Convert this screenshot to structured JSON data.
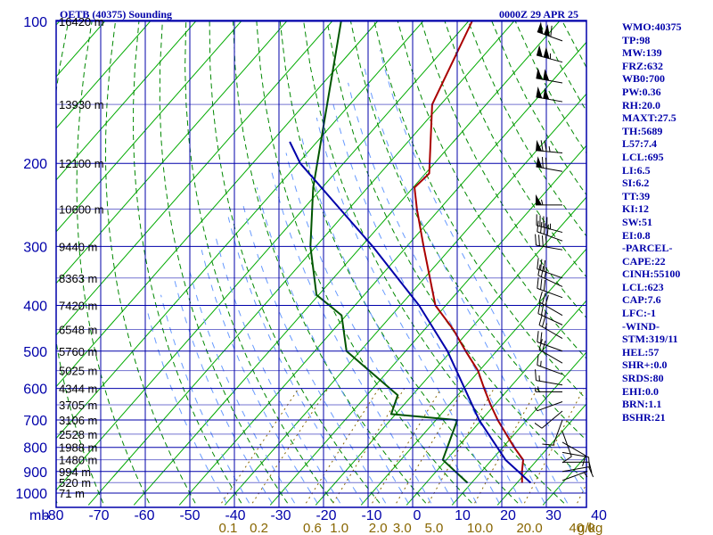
{
  "chart_data": {
    "type": "skew-t sounding",
    "title": "OETB (40375) Sounding",
    "valid_time": "0000Z 29 APR 25",
    "pressure_unit": "mb",
    "mixing_ratio_unit": "g/kg",
    "xlim": [
      -80,
      40
    ],
    "ylim": [
      1000,
      100
    ],
    "temperature_ticks": [
      "-80",
      "-70",
      "-60",
      "-50",
      "-40",
      "-30",
      "-20",
      "-10",
      "0",
      "10",
      "20",
      "30",
      "40"
    ],
    "temperature_tick_values": [
      -80,
      -70,
      -60,
      -50,
      -40,
      -30,
      -20,
      -10,
      0,
      10,
      20,
      30,
      40
    ],
    "pressure_ticks": [
      "100",
      "200",
      "300",
      "400",
      "500",
      "600",
      "700",
      "800",
      "900",
      "1000"
    ],
    "pressure_tick_values": [
      100,
      200,
      300,
      400,
      500,
      600,
      700,
      800,
      900,
      1000
    ],
    "mixing_ratio_ticks": [
      "0.1",
      "0.2",
      "0.6",
      "1.0",
      "2.0",
      "3.0",
      "5.0",
      "10.0",
      "20.0",
      "40.0"
    ],
    "heights": [
      {
        "p": 1000,
        "label": "71 m"
      },
      {
        "p": 950,
        "label": "520 m"
      },
      {
        "p": 900,
        "label": "994 m"
      },
      {
        "p": 850,
        "label": "1480 m"
      },
      {
        "p": 800,
        "label": "1988 m"
      },
      {
        "p": 750,
        "label": "2528 m"
      },
      {
        "p": 700,
        "label": "3106 m"
      },
      {
        "p": 650,
        "label": "3705 m"
      },
      {
        "p": 600,
        "label": "4344 m"
      },
      {
        "p": 550,
        "label": "5025 m"
      },
      {
        "p": 500,
        "label": "5760 m"
      },
      {
        "p": 450,
        "label": "6548 m"
      },
      {
        "p": 400,
        "label": "7420 m"
      },
      {
        "p": 350,
        "label": "8363 m"
      },
      {
        "p": 300,
        "label": "9440 m"
      },
      {
        "p": 250,
        "label": "10600 m"
      },
      {
        "p": 200,
        "label": "12100 m"
      },
      {
        "p": 150,
        "label": "13930 m"
      },
      {
        "p": 100,
        "label": "16420 m"
      }
    ],
    "series": [
      {
        "name": "Temperature",
        "color": "#aa0000",
        "points": [
          {
            "p": 951,
            "t": 21.1
          },
          {
            "p": 900,
            "t": 18.9
          },
          {
            "p": 850,
            "t": 16.9
          },
          {
            "p": 800,
            "t": 12.5
          },
          {
            "p": 700,
            "t": 3.6
          },
          {
            "p": 650,
            "t": -0.9
          },
          {
            "p": 600,
            "t": -5.5
          },
          {
            "p": 550,
            "t": -10.3
          },
          {
            "p": 500,
            "t": -16.8
          },
          {
            "p": 450,
            "t": -23.7
          },
          {
            "p": 400,
            "t": -32.3
          },
          {
            "p": 300,
            "t": -46.3
          },
          {
            "p": 250,
            "t": -55.0
          },
          {
            "p": 225,
            "t": -59.7
          },
          {
            "p": 210,
            "t": -59.2
          },
          {
            "p": 150,
            "t": -71.9
          },
          {
            "p": 100,
            "t": -79.2
          }
        ]
      },
      {
        "name": "Dewpoint",
        "color": "#005500",
        "points": [
          {
            "p": 951,
            "t": 9.1
          },
          {
            "p": 850,
            "t": -0.8
          },
          {
            "p": 700,
            "t": -5.3
          },
          {
            "p": 680,
            "t": -21.0
          },
          {
            "p": 620,
            "t": -23.2
          },
          {
            "p": 500,
            "t": -43.0
          },
          {
            "p": 420,
            "t": -51.0
          },
          {
            "p": 380,
            "t": -60.5
          },
          {
            "p": 300,
            "t": -71.2
          },
          {
            "p": 225,
            "t": -82.0
          },
          {
            "p": 100,
            "t": -108.0
          }
        ]
      },
      {
        "name": "Parcel",
        "color": "#0000aa",
        "points": [
          {
            "p": 951,
            "t": 23.0
          },
          {
            "p": 850,
            "t": 13.0
          },
          {
            "p": 700,
            "t": -0.5
          },
          {
            "p": 600,
            "t": -9.8
          },
          {
            "p": 500,
            "t": -20.8
          },
          {
            "p": 400,
            "t": -35.9
          },
          {
            "p": 300,
            "t": -57.5
          },
          {
            "p": 200,
            "t": -89.5
          },
          {
            "p": 180,
            "t": -96.0
          }
        ]
      }
    ],
    "wind_barbs": [
      {
        "p": 110,
        "dir": 290,
        "kt": 110
      },
      {
        "p": 122,
        "dir": 285,
        "kt": 105
      },
      {
        "p": 135,
        "dir": 280,
        "kt": 100
      },
      {
        "p": 148,
        "dir": 280,
        "kt": 100
      },
      {
        "p": 190,
        "dir": 275,
        "kt": 75
      },
      {
        "p": 208,
        "dir": 280,
        "kt": 70
      },
      {
        "p": 245,
        "dir": 270,
        "kt": 55
      },
      {
        "p": 280,
        "dir": 285,
        "kt": 45
      },
      {
        "p": 292,
        "dir": 290,
        "kt": 40
      },
      {
        "p": 305,
        "dir": 280,
        "kt": 40
      },
      {
        "p": 350,
        "dir": 290,
        "kt": 30
      },
      {
        "p": 365,
        "dir": 295,
        "kt": 30
      },
      {
        "p": 385,
        "dir": 290,
        "kt": 30
      },
      {
        "p": 420,
        "dir": 300,
        "kt": 30
      },
      {
        "p": 440,
        "dir": 295,
        "kt": 25
      },
      {
        "p": 470,
        "dir": 300,
        "kt": 25
      },
      {
        "p": 500,
        "dir": 290,
        "kt": 20
      },
      {
        "p": 530,
        "dir": 300,
        "kt": 20
      },
      {
        "p": 560,
        "dir": 290,
        "kt": 15
      },
      {
        "p": 590,
        "dir": 280,
        "kt": 15
      },
      {
        "p": 610,
        "dir": 270,
        "kt": 15
      },
      {
        "p": 640,
        "dir": 250,
        "kt": 10
      },
      {
        "p": 670,
        "dir": 230,
        "kt": 10
      },
      {
        "p": 700,
        "dir": 200,
        "kt": 10
      },
      {
        "p": 740,
        "dir": 160,
        "kt": 10
      },
      {
        "p": 780,
        "dir": 120,
        "kt": 10
      },
      {
        "p": 820,
        "dir": 100,
        "kt": 10
      },
      {
        "p": 860,
        "dir": 90,
        "kt": 10
      },
      {
        "p": 900,
        "dir": 80,
        "kt": 10
      },
      {
        "p": 940,
        "dir": 70,
        "kt": 5
      }
    ]
  },
  "indices": [
    "WMO:40375",
    "TP:98",
    "MW:139",
    "FRZ:632",
    "WB0:700",
    "PW:0.36",
    "RH:20.0",
    "MAXT:27.5",
    "TH:5689",
    "L57:7.4",
    "LCL:695",
    "LI:6.5",
    "SI:6.2",
    "TT:39",
    "KI:12",
    "SW:51",
    "EI:0.8",
    "-PARCEL-",
    "CAPE:22",
    "CINH:55100",
    "LCL:623",
    "CAP:7.6",
    "LFC:-1",
    "-WIND-",
    "STM:319/11",
    "HEL:57",
    "SHR+:0.0",
    "SRDS:80",
    "EHI:0.0",
    "BRN:1.1",
    "BSHR:21"
  ],
  "colors": {
    "frame": "#0000aa",
    "isotherm": "#00aa00",
    "dry_adiabat": "#008800",
    "moist_adiabat": "#6699ff",
    "mixing_ratio": "#886600",
    "temperature": "#aa0000",
    "dewpoint": "#005500",
    "parcel": "#0000aa",
    "axis_labels": "#0000aa",
    "mixing_labels": "#886600",
    "barb": "#000000"
  }
}
